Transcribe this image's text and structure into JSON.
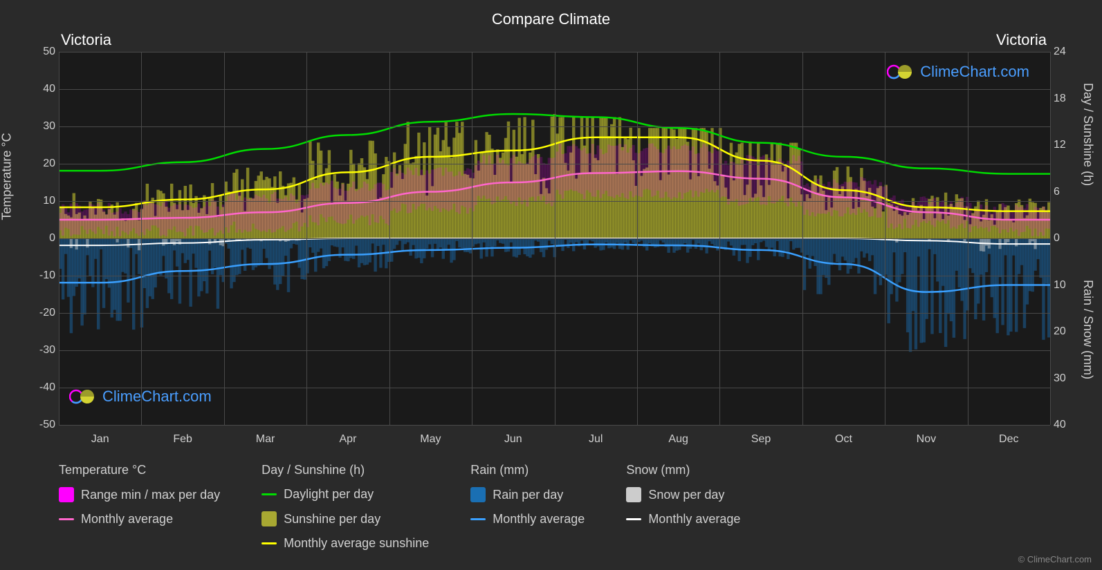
{
  "title": "Compare Climate",
  "city_left": "Victoria",
  "city_right": "Victoria",
  "axis_labels": {
    "left": "Temperature °C",
    "right_top": "Day / Sunshine (h)",
    "right_bottom": "Rain / Snow (mm)"
  },
  "months": [
    "Jan",
    "Feb",
    "Mar",
    "Apr",
    "May",
    "Jun",
    "Jul",
    "Aug",
    "Sep",
    "Oct",
    "Nov",
    "Dec"
  ],
  "y_left": {
    "min": -50,
    "max": 50,
    "step": 10,
    "ticks": [
      50,
      40,
      30,
      20,
      10,
      0,
      -10,
      -20,
      -30,
      -40,
      -50
    ]
  },
  "y_right_top": {
    "min": 0,
    "max": 24,
    "step": 6,
    "ticks": [
      24,
      18,
      12,
      6,
      0
    ]
  },
  "y_right_bottom": {
    "min": 0,
    "max": 40,
    "step": 10,
    "ticks": [
      0,
      10,
      20,
      30,
      40
    ]
  },
  "colors": {
    "background": "#2a2a2a",
    "plot_bg": "#1a1a1a",
    "grid": "#4a4a4a",
    "text": "#d0d0d0",
    "temp_range": "#ff00ff",
    "temp_avg": "#ff66cc",
    "daylight": "#00dd00",
    "sunshine_fill": "#d4d432",
    "sunshine_avg": "#ffff00",
    "rain_fill": "#1a6fb3",
    "rain_avg": "#3aa0ff",
    "snow_fill": "#cccccc",
    "snow_avg": "#ffffff",
    "brand": "#4a9eff"
  },
  "legend": {
    "temp": {
      "header": "Temperature °C",
      "items": [
        {
          "type": "swatch",
          "color": "#ff00ff",
          "label": "Range min / max per day"
        },
        {
          "type": "line",
          "color": "#ff66cc",
          "label": "Monthly average"
        }
      ]
    },
    "daysun": {
      "header": "Day / Sunshine (h)",
      "items": [
        {
          "type": "line",
          "color": "#00dd00",
          "label": "Daylight per day"
        },
        {
          "type": "swatch",
          "color": "#a8a832",
          "label": "Sunshine per day"
        },
        {
          "type": "line",
          "color": "#ffff00",
          "label": "Monthly average sunshine"
        }
      ]
    },
    "rain": {
      "header": "Rain (mm)",
      "items": [
        {
          "type": "swatch",
          "color": "#1a6fb3",
          "label": "Rain per day"
        },
        {
          "type": "line",
          "color": "#3aa0ff",
          "label": "Monthly average"
        }
      ]
    },
    "snow": {
      "header": "Snow (mm)",
      "items": [
        {
          "type": "swatch",
          "color": "#cccccc",
          "label": "Snow per day"
        },
        {
          "type": "line",
          "color": "#ffffff",
          "label": "Monthly average"
        }
      ]
    }
  },
  "brand": "ClimeChart.com",
  "copyright": "© ClimeChart.com",
  "monthly_data": {
    "daylight_h": [
      8.7,
      9.8,
      11.5,
      13.3,
      15.0,
      16.0,
      15.6,
      14.2,
      12.3,
      10.5,
      9.0,
      8.3
    ],
    "sunshine_h": [
      4.0,
      5.0,
      6.3,
      8.5,
      10.5,
      11.3,
      13.0,
      13.0,
      10.0,
      6.2,
      4.0,
      3.5
    ],
    "temp_avg_c": [
      5.0,
      5.5,
      7.0,
      9.5,
      12.5,
      15.0,
      17.5,
      18.0,
      16.0,
      11.0,
      7.0,
      5.0
    ],
    "temp_min_c": [
      2.0,
      2.0,
      3.0,
      5.0,
      8.0,
      10.0,
      12.0,
      12.0,
      10.0,
      7.0,
      4.0,
      2.0
    ],
    "temp_max_c": [
      8.0,
      9.0,
      11.0,
      14.0,
      18.0,
      21.0,
      24.0,
      24.0,
      21.0,
      15.0,
      10.0,
      8.0
    ],
    "rain_mm": [
      9.5,
      7.0,
      5.5,
      3.5,
      2.5,
      2.0,
      1.3,
      1.5,
      2.5,
      5.5,
      11.5,
      10.0
    ],
    "snow_mm": [
      1.5,
      1.0,
      0.3,
      0.0,
      0.0,
      0.0,
      0.0,
      0.0,
      0.0,
      0.0,
      0.5,
      1.2
    ]
  }
}
